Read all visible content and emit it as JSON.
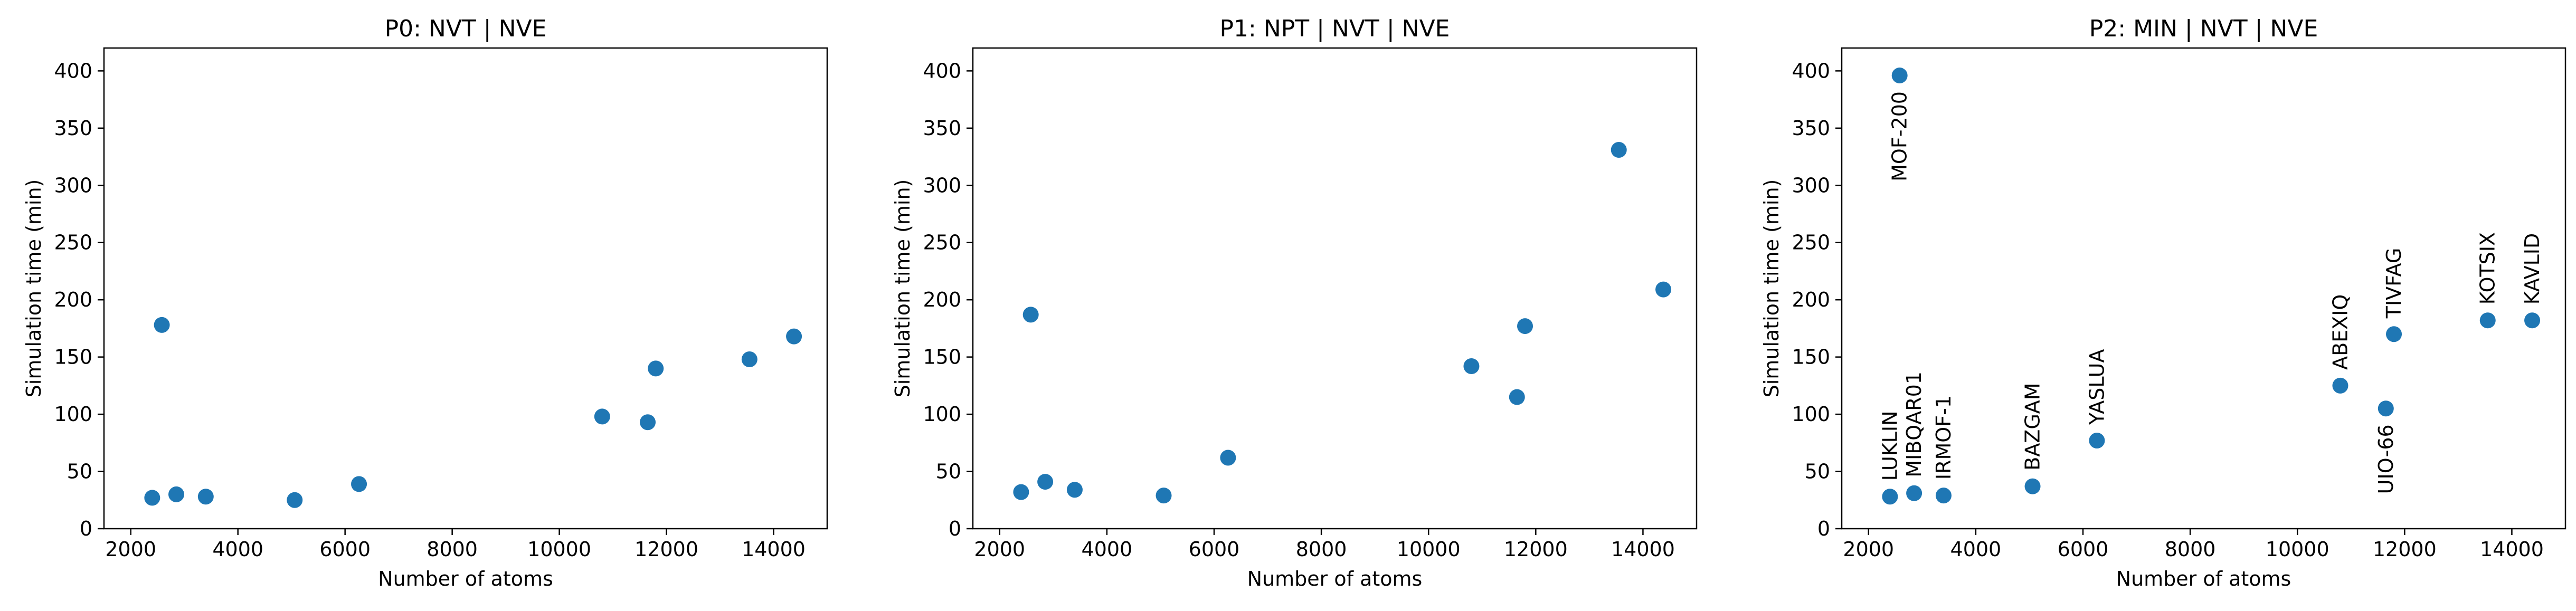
{
  "chart_data": [
    {
      "type": "scatter",
      "title": "P0: NVT | NVE",
      "xlabel": "Number of atoms",
      "ylabel": "Simulation time (min)",
      "xlim": [
        1500,
        15000
      ],
      "ylim": [
        0,
        420
      ],
      "xticks": [
        2000,
        4000,
        6000,
        8000,
        10000,
        12000,
        14000
      ],
      "yticks": [
        0,
        50,
        100,
        150,
        200,
        250,
        300,
        350,
        400
      ],
      "grid": false,
      "color": "#1f77b4",
      "points": [
        {
          "x": 2400,
          "y": 27
        },
        {
          "x": 2580,
          "y": 178
        },
        {
          "x": 2850,
          "y": 30
        },
        {
          "x": 3400,
          "y": 28
        },
        {
          "x": 5060,
          "y": 25
        },
        {
          "x": 6260,
          "y": 39
        },
        {
          "x": 10800,
          "y": 98
        },
        {
          "x": 11650,
          "y": 93
        },
        {
          "x": 11800,
          "y": 140
        },
        {
          "x": 13550,
          "y": 148
        },
        {
          "x": 14380,
          "y": 168
        }
      ]
    },
    {
      "type": "scatter",
      "title": "P1: NPT | NVT | NVE",
      "xlabel": "Number of atoms",
      "ylabel": "Simulation time (min)",
      "xlim": [
        1500,
        15000
      ],
      "ylim": [
        0,
        420
      ],
      "xticks": [
        2000,
        4000,
        6000,
        8000,
        10000,
        12000,
        14000
      ],
      "yticks": [
        0,
        50,
        100,
        150,
        200,
        250,
        300,
        350,
        400
      ],
      "grid": false,
      "color": "#1f77b4",
      "points": [
        {
          "x": 2400,
          "y": 32
        },
        {
          "x": 2580,
          "y": 187
        },
        {
          "x": 2850,
          "y": 41
        },
        {
          "x": 3400,
          "y": 34
        },
        {
          "x": 5060,
          "y": 29
        },
        {
          "x": 6260,
          "y": 62
        },
        {
          "x": 10800,
          "y": 142
        },
        {
          "x": 11650,
          "y": 115
        },
        {
          "x": 11800,
          "y": 177
        },
        {
          "x": 13550,
          "y": 331
        },
        {
          "x": 14380,
          "y": 209
        }
      ]
    },
    {
      "type": "scatter",
      "title": "P2: MIN | NVT | NVE",
      "xlabel": "Number of atoms",
      "ylabel": "Simulation time (min)",
      "xlim": [
        1500,
        15000
      ],
      "ylim": [
        0,
        420
      ],
      "xticks": [
        2000,
        4000,
        6000,
        8000,
        10000,
        12000,
        14000
      ],
      "yticks": [
        0,
        50,
        100,
        150,
        200,
        250,
        300,
        350,
        400
      ],
      "grid": false,
      "color": "#1f77b4",
      "points": [
        {
          "x": 2400,
          "y": 28,
          "label": "LUKLIN",
          "label_pos": "above"
        },
        {
          "x": 2580,
          "y": 396,
          "label": "MOF-200",
          "label_pos": "below"
        },
        {
          "x": 2850,
          "y": 31,
          "label": "MIBQAR01",
          "label_pos": "above"
        },
        {
          "x": 3400,
          "y": 29,
          "label": "IRMOF-1",
          "label_pos": "above"
        },
        {
          "x": 5060,
          "y": 37,
          "label": "BAZGAM",
          "label_pos": "above"
        },
        {
          "x": 6260,
          "y": 77,
          "label": "YASLUA",
          "label_pos": "above"
        },
        {
          "x": 10800,
          "y": 125,
          "label": "ABEXIQ",
          "label_pos": "above"
        },
        {
          "x": 11650,
          "y": 105,
          "label": "UIO-66",
          "label_pos": "below"
        },
        {
          "x": 11800,
          "y": 170,
          "label": "TIVFAG",
          "label_pos": "above"
        },
        {
          "x": 13550,
          "y": 182,
          "label": "KOTSIX",
          "label_pos": "above"
        },
        {
          "x": 14380,
          "y": 182,
          "label": "KAVLID",
          "label_pos": "above"
        }
      ]
    }
  ]
}
